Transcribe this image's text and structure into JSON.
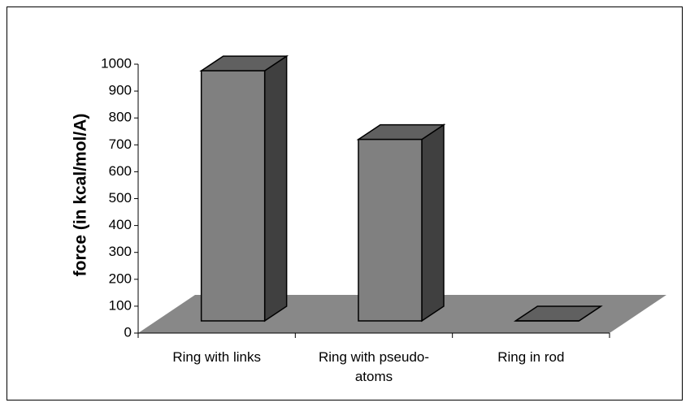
{
  "chart_data": {
    "type": "bar3d",
    "y_label": "force (in kcal/mol/A)",
    "categories": [
      "Ring with links",
      "Ring with pseudo-atoms",
      "Ring in rod"
    ],
    "values": [
      930,
      675,
      0
    ],
    "color": "#808080",
    "ylim": [
      0,
      1000
    ],
    "yticks": [
      0,
      100,
      200,
      300,
      400,
      500,
      600,
      700,
      800,
      900,
      1000
    ]
  }
}
